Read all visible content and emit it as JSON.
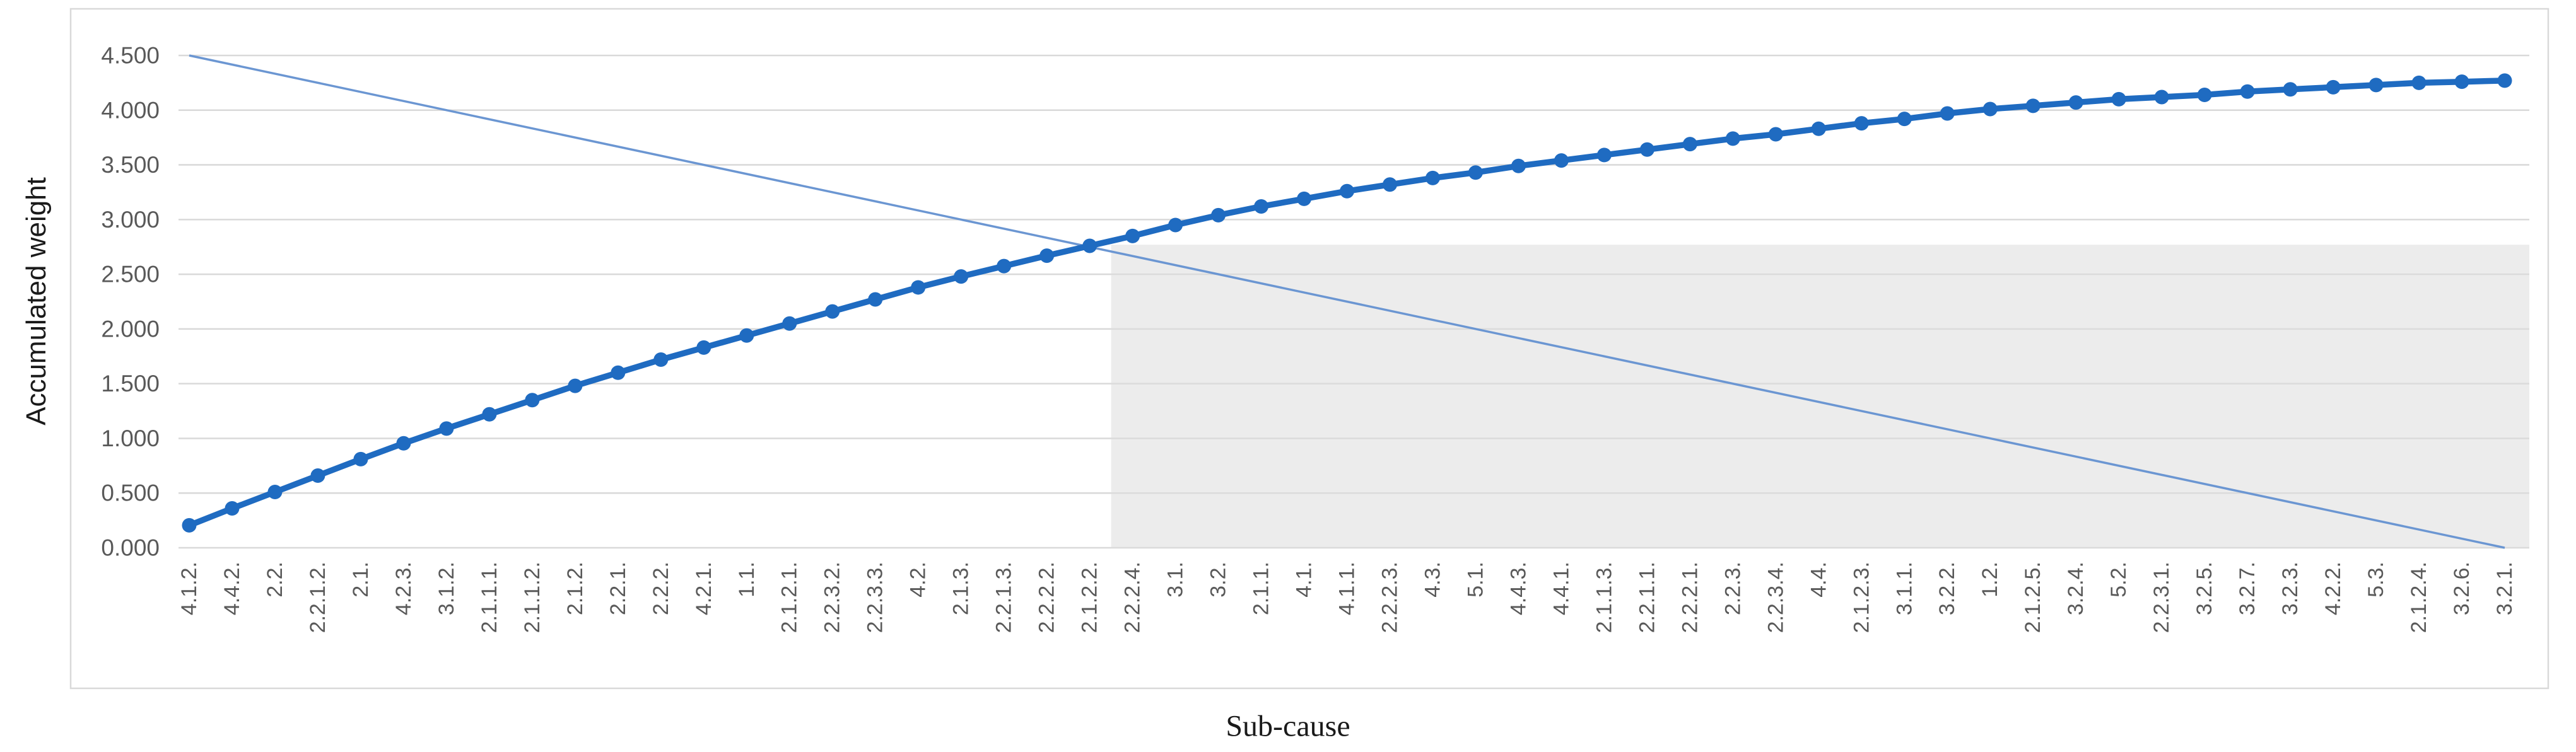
{
  "chart_data": {
    "type": "line",
    "title": "",
    "xlabel": "Sub-cause",
    "ylabel": "Accumulated weight",
    "ylim": [
      0,
      4.5
    ],
    "ytick_step": 0.5,
    "ytick_labels": [
      "0.000",
      "0.500",
      "1.000",
      "1.500",
      "2.000",
      "2.500",
      "3.000",
      "3.500",
      "4.000",
      "4.500"
    ],
    "grid": "horizontal",
    "legend_position": "none",
    "categories": [
      "4.1.2.",
      "4.4.2.",
      "2.2.",
      "2.2.1.2.",
      "2.1.",
      "4.2.3.",
      "3.1.2.",
      "2.1.1.1.",
      "2.1.1.2.",
      "2.1.2.",
      "2.2.1.",
      "2.2.2.",
      "4.2.1.",
      "1.1.",
      "2.1.2.1.",
      "2.2.3.2.",
      "2.2.3.3.",
      "4.2.",
      "2.1.3.",
      "2.2.1.3.",
      "2.2.2.2.",
      "2.1.2.2.",
      "2.2.2.4.",
      "3.1.",
      "3.2.",
      "2.1.1.",
      "4.1.",
      "4.1.1.",
      "2.2.2.3.",
      "4.3.",
      "5.1.",
      "4.4.3.",
      "4.4.1.",
      "2.1.1.3.",
      "2.2.1.1.",
      "2.2.2.1.",
      "2.2.3.",
      "2.2.3.4.",
      "4.4.",
      "2.1.2.3.",
      "3.1.1.",
      "3.2.2.",
      "1.2.",
      "2.1.2.5.",
      "3.2.4.",
      "5.2.",
      "2.2.3.1.",
      "3.2.5.",
      "3.2.7.",
      "3.2.3.",
      "4.2.2.",
      "5.3.",
      "2.1.2.4.",
      "3.2.6.",
      "3.2.1."
    ],
    "series": [
      {
        "name": "accumulated-weight-curve",
        "style": "thick-line-with-round-markers",
        "values": [
          0.205,
          0.36,
          0.51,
          0.66,
          0.81,
          0.955,
          1.09,
          1.22,
          1.35,
          1.48,
          1.6,
          1.72,
          1.83,
          1.94,
          2.05,
          2.16,
          2.27,
          2.38,
          2.48,
          2.575,
          2.67,
          2.76,
          2.85,
          2.95,
          3.04,
          3.12,
          3.19,
          3.26,
          3.32,
          3.38,
          3.43,
          3.49,
          3.54,
          3.59,
          3.64,
          3.69,
          3.74,
          3.78,
          3.83,
          3.88,
          3.92,
          3.97,
          4.01,
          4.04,
          4.07,
          4.1,
          4.12,
          4.14,
          4.17,
          4.19,
          4.21,
          4.23,
          4.25,
          4.26,
          4.27
        ]
      },
      {
        "name": "descending-reference-line",
        "style": "thin-straight-line",
        "values_endpoints": {
          "first_category_value": 4.5,
          "last_category_value": 0.0
        }
      }
    ],
    "shaded_region": {
      "description": "flat gray rectangle under the tail of the chart, starting just after the crossing of the two lines",
      "starts_after_category_index": 21,
      "top_value": 2.77,
      "extends_to": "plot-right-and-bottom"
    },
    "colors": {
      "curve": "#1f6bc1",
      "reference_line": "#6b96d2",
      "gridline": "#d9d9d9",
      "frame": "#d9d9d9",
      "tick_text": "#595959",
      "shade_fill": "#dcdcdc",
      "shade_opacity": 0.55,
      "background": "#ffffff"
    }
  },
  "layout_labels": {
    "y_axis_title": "Accumulated weight",
    "x_axis_title": "Sub-cause"
  }
}
